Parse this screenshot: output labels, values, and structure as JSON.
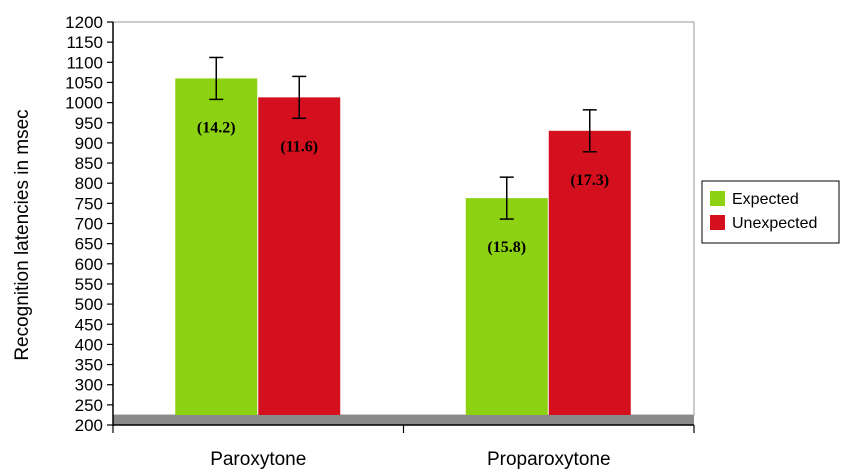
{
  "chart_data": {
    "type": "bar",
    "ylabel": "Recognition latencies in msec",
    "xlabel": "",
    "title": "",
    "ylim": [
      200,
      1200
    ],
    "ytick_step": 50,
    "categories": [
      "Paroxytone",
      "Proparoxytone"
    ],
    "series": [
      {
        "name": "Expected",
        "color": "#8cd212",
        "values": [
          1060,
          763
        ],
        "errors": [
          52,
          52
        ],
        "labels": [
          "(14.2)",
          "(15.8)"
        ]
      },
      {
        "name": "Unexpected",
        "color": "#d4101e",
        "values": [
          1013,
          930
        ],
        "errors": [
          52,
          52
        ],
        "labels": [
          "(11.6)",
          "(17.3)"
        ]
      }
    ],
    "legend_position": "right",
    "grid": false
  }
}
